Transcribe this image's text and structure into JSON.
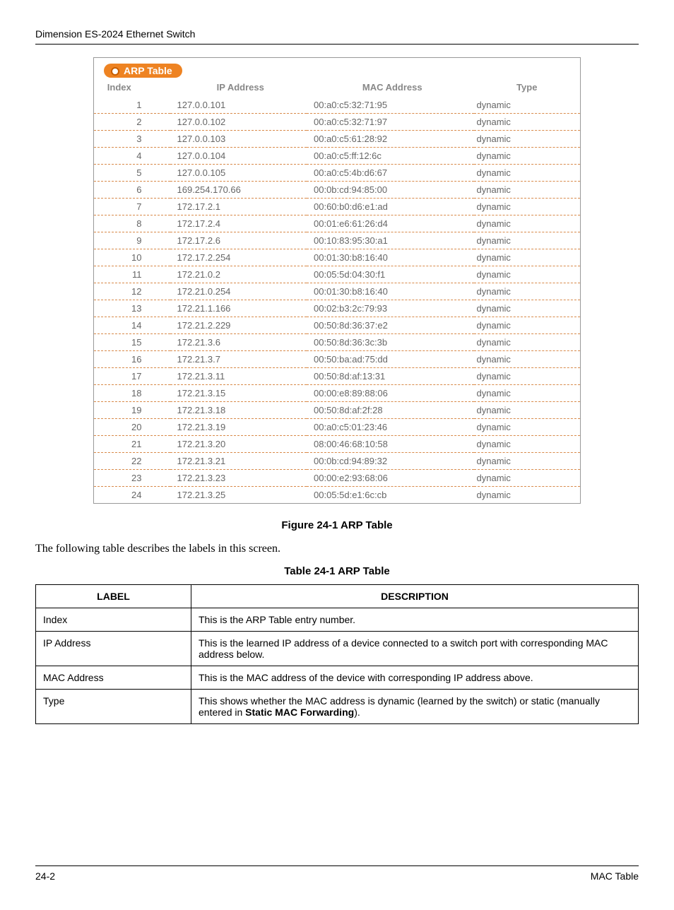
{
  "doc": {
    "header_title": "Dimension ES-2024 Ethernet Switch",
    "figure_caption": "Figure 24-1 ARP Table",
    "intro_text": "The following table describes the labels in this screen.",
    "table_caption": "Table 24-1 ARP Table",
    "footer_left": "24-2",
    "footer_right": "MAC Table"
  },
  "arp_panel": {
    "tab_label": "ARP Table",
    "columns": [
      "Index",
      "IP Address",
      "MAC Address",
      "Type"
    ],
    "rows": [
      {
        "idx": "1",
        "ip": "127.0.0.101",
        "mac": "00:a0:c5:32:71:95",
        "type": "dynamic"
      },
      {
        "idx": "2",
        "ip": "127.0.0.102",
        "mac": "00:a0:c5:32:71:97",
        "type": "dynamic"
      },
      {
        "idx": "3",
        "ip": "127.0.0.103",
        "mac": "00:a0:c5:61:28:92",
        "type": "dynamic"
      },
      {
        "idx": "4",
        "ip": "127.0.0.104",
        "mac": "00:a0:c5:ff:12:6c",
        "type": "dynamic"
      },
      {
        "idx": "5",
        "ip": "127.0.0.105",
        "mac": "00:a0:c5:4b:d6:67",
        "type": "dynamic"
      },
      {
        "idx": "6",
        "ip": "169.254.170.66",
        "mac": "00:0b:cd:94:85:00",
        "type": "dynamic"
      },
      {
        "idx": "7",
        "ip": "172.17.2.1",
        "mac": "00:60:b0:d6:e1:ad",
        "type": "dynamic"
      },
      {
        "idx": "8",
        "ip": "172.17.2.4",
        "mac": "00:01:e6:61:26:d4",
        "type": "dynamic"
      },
      {
        "idx": "9",
        "ip": "172.17.2.6",
        "mac": "00:10:83:95:30:a1",
        "type": "dynamic"
      },
      {
        "idx": "10",
        "ip": "172.17.2.254",
        "mac": "00:01:30:b8:16:40",
        "type": "dynamic"
      },
      {
        "idx": "11",
        "ip": "172.21.0.2",
        "mac": "00:05:5d:04:30:f1",
        "type": "dynamic"
      },
      {
        "idx": "12",
        "ip": "172.21.0.254",
        "mac": "00:01:30:b8:16:40",
        "type": "dynamic"
      },
      {
        "idx": "13",
        "ip": "172.21.1.166",
        "mac": "00:02:b3:2c:79:93",
        "type": "dynamic"
      },
      {
        "idx": "14",
        "ip": "172.21.2.229",
        "mac": "00:50:8d:36:37:e2",
        "type": "dynamic"
      },
      {
        "idx": "15",
        "ip": "172.21.3.6",
        "mac": "00:50:8d:36:3c:3b",
        "type": "dynamic"
      },
      {
        "idx": "16",
        "ip": "172.21.3.7",
        "mac": "00:50:ba:ad:75:dd",
        "type": "dynamic"
      },
      {
        "idx": "17",
        "ip": "172.21.3.11",
        "mac": "00:50:8d:af:13:31",
        "type": "dynamic"
      },
      {
        "idx": "18",
        "ip": "172.21.3.15",
        "mac": "00:00:e8:89:88:06",
        "type": "dynamic"
      },
      {
        "idx": "19",
        "ip": "172.21.3.18",
        "mac": "00:50:8d:af:2f:28",
        "type": "dynamic"
      },
      {
        "idx": "20",
        "ip": "172.21.3.19",
        "mac": "00:a0:c5:01:23:46",
        "type": "dynamic"
      },
      {
        "idx": "21",
        "ip": "172.21.3.20",
        "mac": "08:00:46:68:10:58",
        "type": "dynamic"
      },
      {
        "idx": "22",
        "ip": "172.21.3.21",
        "mac": "00:0b:cd:94:89:32",
        "type": "dynamic"
      },
      {
        "idx": "23",
        "ip": "172.21.3.23",
        "mac": "00:00:e2:93:68:06",
        "type": "dynamic"
      },
      {
        "idx": "24",
        "ip": "172.21.3.25",
        "mac": "00:05:5d:e1:6c:cb",
        "type": "dynamic"
      }
    ],
    "colors": {
      "tab_bg": "#ee8322",
      "tab_text": "#ffffff",
      "row_dash": "#d88a4a",
      "text_color": "#666666"
    }
  },
  "desc_table": {
    "header_label": "LABEL",
    "header_desc": "DESCRIPTION",
    "rows": [
      {
        "label": "Index",
        "desc": "This is the ARP Table entry number."
      },
      {
        "label": "IP Address",
        "desc": "This is the learned IP address of a device connected to a switch port with corresponding MAC address below."
      },
      {
        "label": "MAC Address",
        "desc": "This is the MAC address of the device with corresponding IP address above."
      },
      {
        "label": "Type",
        "desc_prefix": "This shows whether the MAC address is dynamic (learned by the switch) or static (manually entered in ",
        "desc_bold": "Static MAC Forwarding",
        "desc_suffix": ")."
      }
    ]
  }
}
